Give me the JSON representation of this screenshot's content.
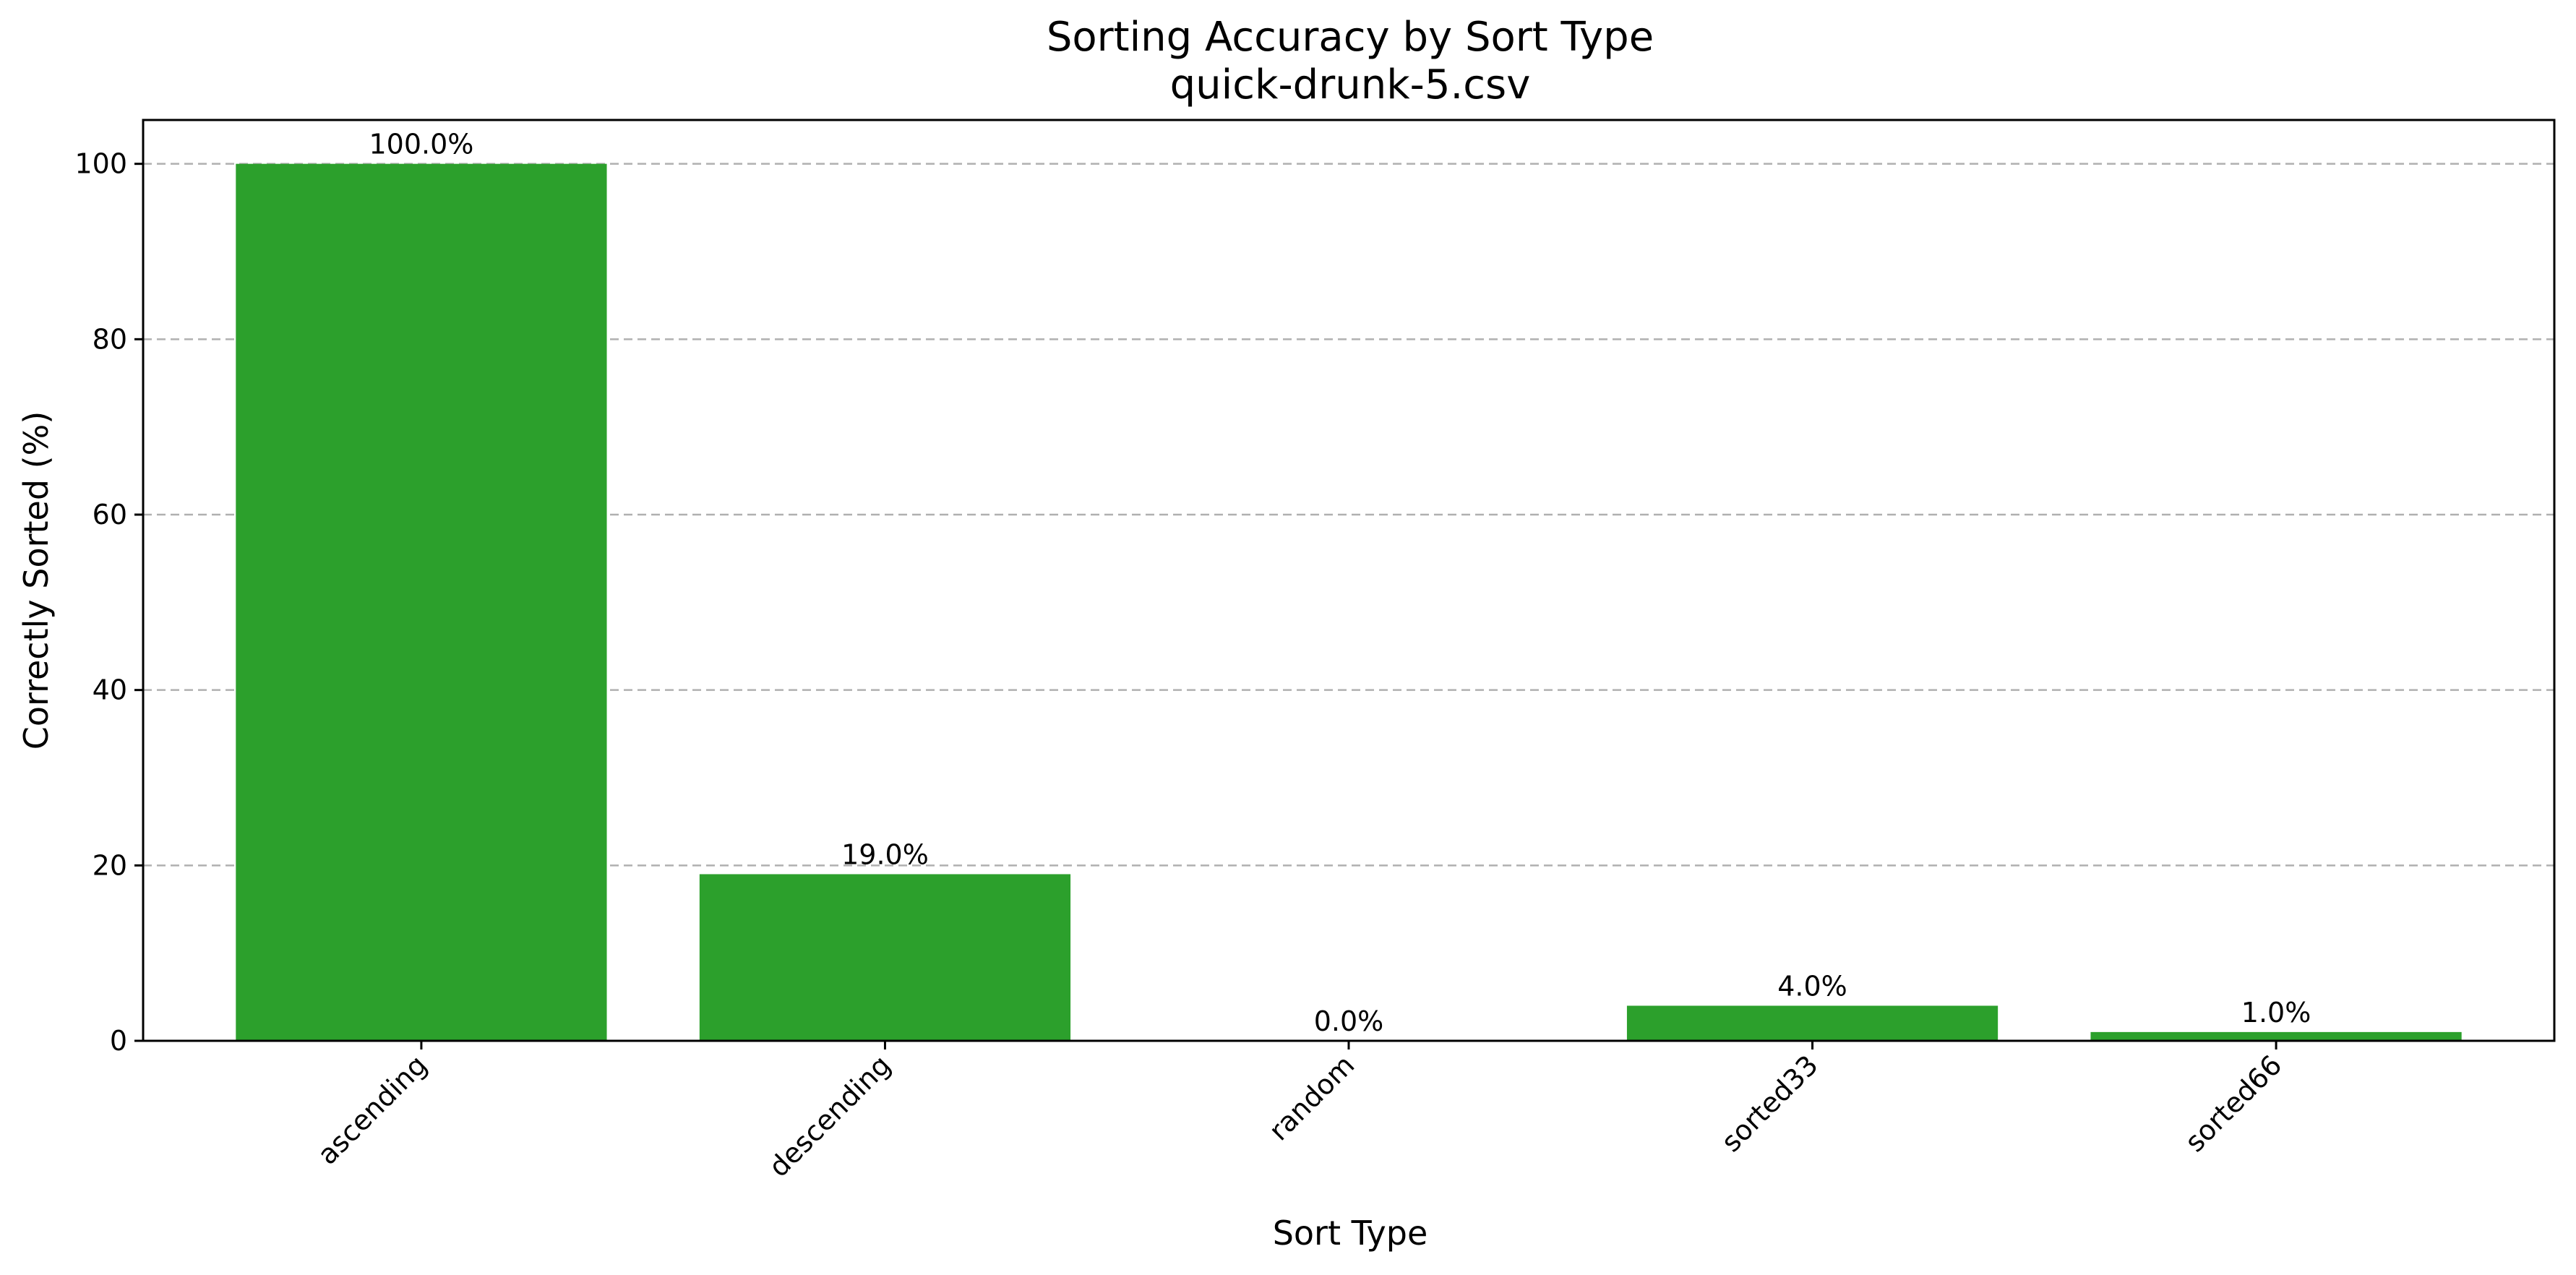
{
  "chart_data": {
    "type": "bar",
    "title": "Sorting Accuracy by Sort Type",
    "subtitle": "quick-drunk-5.csv",
    "xlabel": "Sort Type",
    "ylabel": "Correctly Sorted (%)",
    "categories": [
      "ascending",
      "descending",
      "random",
      "sorted33",
      "sorted66"
    ],
    "values": [
      100.0,
      19.0,
      0.0,
      4.0,
      1.0
    ],
    "data_labels": [
      "100.0%",
      "19.0%",
      "0.0%",
      "4.0%",
      "1.0%"
    ],
    "ylim": [
      0,
      105
    ],
    "yticks": [
      0,
      20,
      40,
      60,
      80,
      100
    ],
    "ytick_labels": [
      "0",
      "20",
      "40",
      "60",
      "80",
      "100"
    ],
    "grid": "y-dashed",
    "bar_color": "#2ca02c",
    "legend": "none"
  }
}
